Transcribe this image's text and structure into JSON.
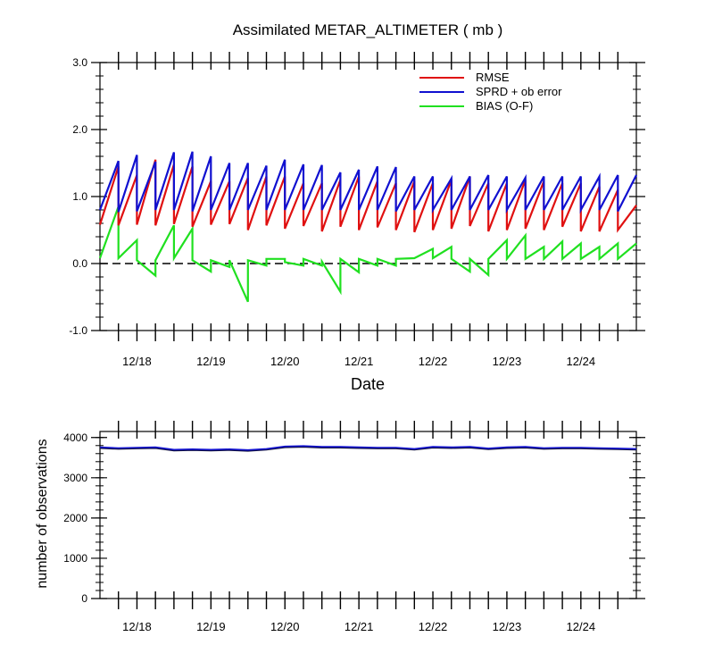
{
  "chart_data": [
    {
      "type": "line",
      "title": "Assimilated METAR_ALTIMETER ( mb )",
      "xlabel": "Date",
      "ylabel": "",
      "ylim": [
        -1.0,
        3.0
      ],
      "yticks": [
        "-1.0",
        "0.0",
        "1.0",
        "2.0",
        "3.0"
      ],
      "xlim": [
        0,
        29
      ],
      "xtick_positions": [
        2,
        6,
        10,
        14,
        18,
        22,
        26
      ],
      "xtick_labels": [
        "12/18",
        "12/19",
        "12/20",
        "12/21",
        "12/22",
        "12/23",
        "12/24"
      ],
      "zero_line": "dashed",
      "legend_position": "top-right",
      "series": [
        {
          "name": "RMSE",
          "color": "#e01010",
          "x": [
            0,
            1,
            1,
            2,
            2,
            3,
            3,
            4,
            4,
            5,
            5,
            6,
            6,
            7,
            7,
            8,
            8,
            9,
            9,
            10,
            10,
            11,
            11,
            12,
            12,
            13,
            13,
            14,
            14,
            15,
            15,
            16,
            16,
            17,
            17,
            18,
            18,
            19,
            19,
            20,
            20,
            21,
            21,
            22,
            22,
            23,
            23,
            24,
            24,
            25,
            25,
            26,
            26,
            27,
            27,
            28,
            28,
            29
          ],
          "values": [
            0.58,
            1.45,
            0.57,
            1.32,
            0.58,
            1.55,
            0.57,
            1.48,
            0.59,
            1.45,
            0.55,
            1.23,
            0.58,
            1.23,
            0.59,
            1.28,
            0.5,
            1.3,
            0.57,
            1.3,
            0.52,
            1.2,
            0.56,
            1.2,
            0.48,
            1.25,
            0.55,
            1.3,
            0.5,
            1.23,
            0.54,
            1.2,
            0.5,
            1.23,
            0.47,
            1.2,
            0.5,
            1.25,
            0.52,
            1.3,
            0.56,
            1.2,
            0.48,
            1.2,
            0.5,
            1.25,
            0.52,
            1.23,
            0.5,
            1.2,
            0.55,
            1.2,
            0.48,
            1.15,
            0.48,
            1.1,
            0.5,
            0.87
          ]
        },
        {
          "name": "SPRD + ob error",
          "color": "#1010d0",
          "x": [
            0,
            1,
            1,
            2,
            2,
            3,
            3,
            4,
            4,
            5,
            5,
            6,
            6,
            7,
            7,
            8,
            8,
            9,
            9,
            10,
            10,
            11,
            11,
            12,
            12,
            13,
            13,
            14,
            14,
            15,
            15,
            16,
            16,
            17,
            17,
            18,
            18,
            19,
            19,
            20,
            20,
            21,
            21,
            22,
            22,
            23,
            23,
            24,
            24,
            25,
            25,
            26,
            26,
            27,
            27,
            28,
            28,
            29
          ],
          "values": [
            0.8,
            1.53,
            0.77,
            1.62,
            0.78,
            1.52,
            0.8,
            1.66,
            0.8,
            1.67,
            0.78,
            1.6,
            0.8,
            1.5,
            0.8,
            1.5,
            0.8,
            1.46,
            0.8,
            1.55,
            0.8,
            1.48,
            0.8,
            1.47,
            0.8,
            1.36,
            0.8,
            1.4,
            0.8,
            1.45,
            0.8,
            1.44,
            0.78,
            1.3,
            0.8,
            1.3,
            0.8,
            1.27,
            0.8,
            1.3,
            0.8,
            1.32,
            0.8,
            1.3,
            0.8,
            1.28,
            0.8,
            1.3,
            0.8,
            1.3,
            0.8,
            1.3,
            0.8,
            1.3,
            0.8,
            1.32,
            0.78,
            1.32
          ]
        },
        {
          "name": "BIAS (O-F)",
          "color": "#20e020",
          "x": [
            0,
            1,
            1,
            2,
            2,
            3,
            3,
            4,
            4,
            5,
            5,
            6,
            6,
            7,
            7,
            8,
            8,
            9,
            9,
            10,
            10,
            11,
            11,
            12,
            12,
            13,
            13,
            14,
            14,
            15,
            15,
            16,
            16,
            17,
            17,
            18,
            18,
            19,
            19,
            20,
            20,
            21,
            21,
            22,
            22,
            23,
            23,
            24,
            24,
            25,
            25,
            26,
            26,
            27,
            27,
            28,
            28,
            29
          ],
          "values": [
            0.08,
            0.85,
            0.08,
            0.35,
            0.05,
            -0.18,
            0.05,
            0.57,
            0.08,
            0.52,
            0.05,
            -0.12,
            0.05,
            -0.05,
            0.05,
            -0.57,
            0.05,
            -0.03,
            0.07,
            0.07,
            0.02,
            -0.03,
            0.07,
            -0.03,
            0.03,
            -0.42,
            0.07,
            -0.13,
            0.07,
            -0.03,
            0.07,
            -0.03,
            0.07,
            0.08,
            0.08,
            0.22,
            0.08,
            0.25,
            0.07,
            -0.12,
            0.07,
            -0.17,
            0.07,
            0.35,
            0.07,
            0.42,
            0.07,
            0.25,
            0.07,
            0.33,
            0.07,
            0.3,
            0.07,
            0.25,
            0.07,
            0.3,
            0.07,
            0.3
          ]
        }
      ]
    },
    {
      "type": "line",
      "title": "",
      "xlabel": "",
      "ylabel": "number of observations",
      "ylim": [
        0,
        4150
      ],
      "yticks": [
        "0",
        "1000",
        "2000",
        "3000",
        "4000"
      ],
      "xlim": [
        0,
        29
      ],
      "xtick_positions": [
        2,
        6,
        10,
        14,
        18,
        22,
        26
      ],
      "xtick_labels": [
        "12/18",
        "12/19",
        "12/20",
        "12/21",
        "12/22",
        "12/23",
        "12/24"
      ],
      "series": [
        {
          "name": "observations",
          "color": "#1010d0",
          "x": [
            0,
            1,
            2,
            3,
            4,
            5,
            6,
            7,
            8,
            9,
            10,
            11,
            12,
            13,
            14,
            15,
            16,
            17,
            18,
            19,
            20,
            21,
            22,
            23,
            24,
            25,
            26,
            27,
            28,
            29
          ],
          "values": [
            3760,
            3740,
            3750,
            3760,
            3700,
            3710,
            3700,
            3710,
            3690,
            3720,
            3780,
            3790,
            3770,
            3770,
            3760,
            3750,
            3750,
            3720,
            3770,
            3760,
            3770,
            3730,
            3760,
            3770,
            3740,
            3750,
            3750,
            3740,
            3730,
            3720
          ]
        }
      ]
    }
  ]
}
